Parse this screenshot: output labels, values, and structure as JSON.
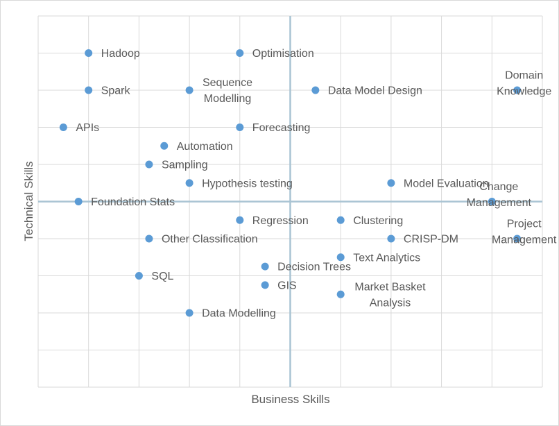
{
  "chart_data": {
    "type": "scatter",
    "title": "",
    "xlabel": "Business Skills",
    "ylabel": "Technical Skills",
    "xlim": [
      0,
      20
    ],
    "ylim": [
      0,
      20
    ],
    "grid": true,
    "tick_labels_visible": false,
    "reference_lines": {
      "x": 10,
      "y": 10
    },
    "marker_color": "#5b9bd5",
    "gridline_color": "#d9d9d9",
    "reference_line_color": "#a9c4d3",
    "points": [
      {
        "label": "Hadoop",
        "x": 2,
        "y": 18
      },
      {
        "label": "Optimisation",
        "x": 8,
        "y": 18
      },
      {
        "label": "Spark",
        "x": 2,
        "y": 16
      },
      {
        "label": "Sequence Modelling",
        "x": 6,
        "y": 16
      },
      {
        "label": "Data Model Design",
        "x": 11,
        "y": 16
      },
      {
        "label": "Domain Knowledge",
        "x": 19,
        "y": 16
      },
      {
        "label": "APIs",
        "x": 1,
        "y": 14
      },
      {
        "label": "Forecasting",
        "x": 8,
        "y": 14
      },
      {
        "label": "Automation",
        "x": 5,
        "y": 13
      },
      {
        "label": "Sampling",
        "x": 4.4,
        "y": 12
      },
      {
        "label": "Hypothesis testing",
        "x": 6,
        "y": 11
      },
      {
        "label": "Model Evaluation",
        "x": 14,
        "y": 11
      },
      {
        "label": "Foundation Stats",
        "x": 1.6,
        "y": 10
      },
      {
        "label": "Change Management",
        "x": 18,
        "y": 10
      },
      {
        "label": "Regression",
        "x": 8,
        "y": 9
      },
      {
        "label": "Clustering",
        "x": 12,
        "y": 9
      },
      {
        "label": "Other Classification",
        "x": 4.4,
        "y": 8
      },
      {
        "label": "CRISP-DM",
        "x": 14,
        "y": 8
      },
      {
        "label": "Project Management",
        "x": 19,
        "y": 8
      },
      {
        "label": "Text Analytics",
        "x": 12,
        "y": 7
      },
      {
        "label": "Decision Trees",
        "x": 9,
        "y": 6.5
      },
      {
        "label": "SQL",
        "x": 4,
        "y": 6
      },
      {
        "label": "GIS",
        "x": 9,
        "y": 5.5
      },
      {
        "label": "Market Basket Analysis",
        "x": 12,
        "y": 5
      },
      {
        "label": "Data Modelling",
        "x": 6,
        "y": 4
      }
    ]
  }
}
